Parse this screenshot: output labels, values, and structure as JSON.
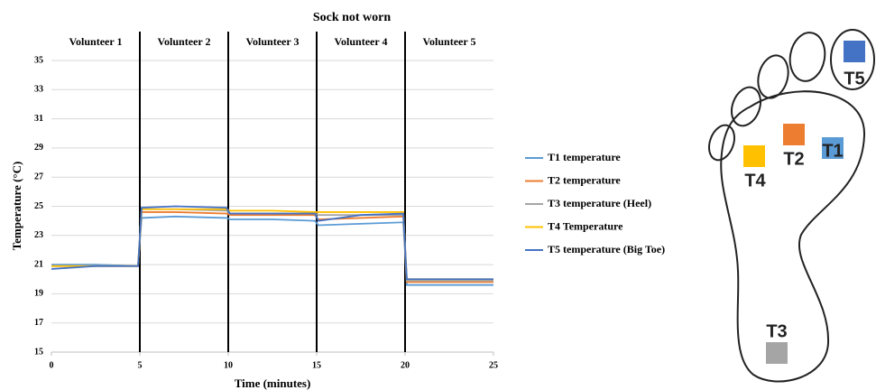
{
  "chart_data": {
    "type": "line",
    "title": "Sock not worn",
    "xlabel": "Time (minutes)",
    "ylabel": "Temperature (°C)",
    "panels": [
      "Volunteer 1",
      "Volunteer 2",
      "Volunteer 3",
      "Volunteer 4",
      "Volunteer 5"
    ],
    "dividers": [
      5,
      10,
      15,
      20
    ],
    "x": [
      0,
      2.5,
      4.9,
      5.1,
      7,
      9.9,
      10.1,
      12.5,
      14.9,
      15.1,
      17.5,
      19.9,
      20.1,
      22.5,
      25
    ],
    "series": [
      {
        "name": "T1 temperature",
        "color": "#5b9bd5",
        "values": [
          21.0,
          21.0,
          20.9,
          24.2,
          24.3,
          24.2,
          24.1,
          24.1,
          24.0,
          23.7,
          23.8,
          23.9,
          19.6,
          19.6,
          19.6
        ]
      },
      {
        "name": "T2 temperature",
        "color": "#ed7d31",
        "values": [
          20.9,
          20.9,
          20.9,
          24.6,
          24.6,
          24.5,
          24.4,
          24.4,
          24.4,
          24.1,
          24.2,
          24.3,
          19.8,
          19.8,
          19.8
        ]
      },
      {
        "name": "T3 temperature (Heel)",
        "color": "#a5a5a5",
        "values": [
          20.9,
          20.9,
          20.9,
          24.8,
          24.8,
          24.7,
          24.5,
          24.5,
          24.5,
          24.4,
          24.4,
          24.4,
          19.9,
          19.9,
          19.9
        ]
      },
      {
        "name": "T4 Temperature",
        "color": "#ffc000",
        "values": [
          20.9,
          20.9,
          20.9,
          24.8,
          24.8,
          24.8,
          24.7,
          24.7,
          24.6,
          24.6,
          24.6,
          24.6,
          20.0,
          20.0,
          20.0
        ]
      },
      {
        "name": "T5 temperature (Big Toe)",
        "color": "#4472c4",
        "values": [
          20.7,
          20.9,
          20.9,
          24.9,
          25.0,
          24.9,
          24.5,
          24.5,
          24.5,
          24.0,
          24.4,
          24.5,
          20.0,
          20.0,
          20.0
        ]
      }
    ],
    "xlim": [
      0,
      25
    ],
    "xticks": [
      0,
      5,
      10,
      15,
      20,
      25
    ],
    "ylim": [
      15,
      35
    ],
    "yticks": [
      15,
      17,
      19,
      21,
      23,
      25,
      27,
      29,
      31,
      33,
      35
    ],
    "grid": true
  },
  "diagram": {
    "sensors": [
      "T1",
      "T2",
      "T3",
      "T4",
      "T5"
    ]
  }
}
